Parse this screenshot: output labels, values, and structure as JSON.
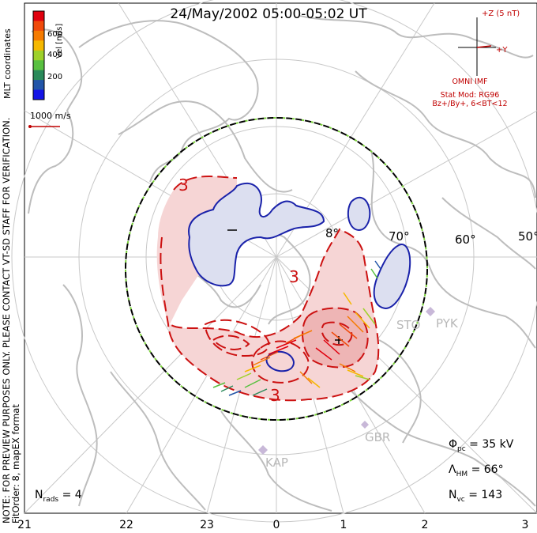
{
  "title": "24/May/2002 05:00-05:02 UT",
  "side_note_line1": "NOTE: FOR PREVIEW PURPOSES ONLY. PLEASE CONTACT VT-SD STAFF FOR VERIFICATION.",
  "side_note_line2": "FitOrder: 8, mapEX format",
  "colorbar": {
    "labels": [
      "600",
      "400",
      "200"
    ],
    "unit": "Vel [m/s]",
    "coords": "MLT coordinates",
    "colors": [
      "#e0000e",
      "#f04a0b",
      "#f57b00",
      "#f5b800",
      "#9ed12a",
      "#58c040",
      "#2a8a5a",
      "#2255a8",
      "#1414e6"
    ]
  },
  "ref_vector_label": "1000 m/s",
  "imf": {
    "z_label": "+Z (5 nT)",
    "y_label": "+Y",
    "source": "OMNI IMF",
    "stat_mod": "Stat Mod: RG96",
    "condition": "Bz+/By+, 6<BT<12",
    "color": "#c00000"
  },
  "latitude_labels": [
    "70°",
    "60°",
    "50°"
  ],
  "latitude_partial": "8°",
  "contour_labels": [
    "3",
    "3",
    "3",
    "-"
  ],
  "sites": [
    "STO",
    "PYK",
    "GBR",
    "KAP"
  ],
  "stats": {
    "phi_pc": "= 35 kV",
    "lambda_hm": "= 66°",
    "n_vc": "= 143",
    "n_rads": "= 4"
  },
  "mlt_labels": [
    "21",
    "22",
    "23",
    "0",
    "1",
    "2",
    "3"
  ],
  "colors": {
    "positive_contour": "#cc1111",
    "positive_fill": "#f6d5d5",
    "negative_contour": "#1a22aa",
    "negative_fill": "#dcdff0",
    "coastline": "#c0c0c0",
    "grid": "#c8c8c8",
    "boundary_green": "#7ad23a"
  }
}
